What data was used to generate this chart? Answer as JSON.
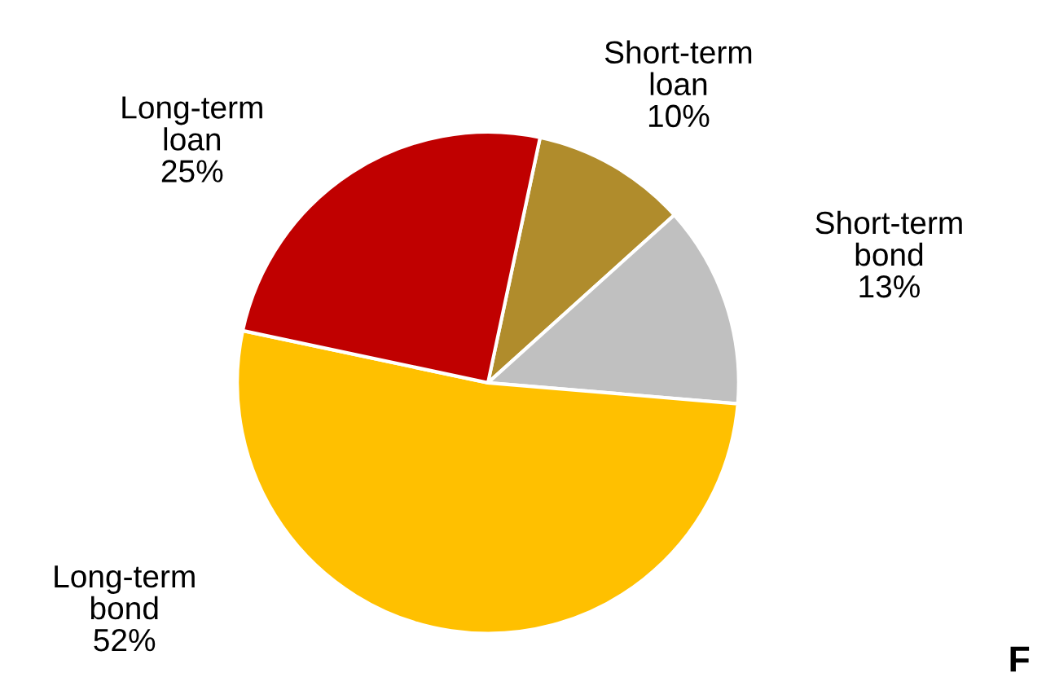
{
  "chart_data": {
    "type": "pie",
    "categories": [
      "Short-term\nloan",
      "Short-term\nbond",
      "Long-term\nbond",
      "Long-term\nloan"
    ],
    "values": [
      10,
      13,
      52,
      25
    ],
    "value_labels": [
      "10%",
      "13%",
      "52%",
      "25%"
    ],
    "colors": [
      "#b08c2c",
      "#c0c0c0",
      "#ffc000",
      "#c00000"
    ],
    "annotations": [
      "F"
    ]
  }
}
